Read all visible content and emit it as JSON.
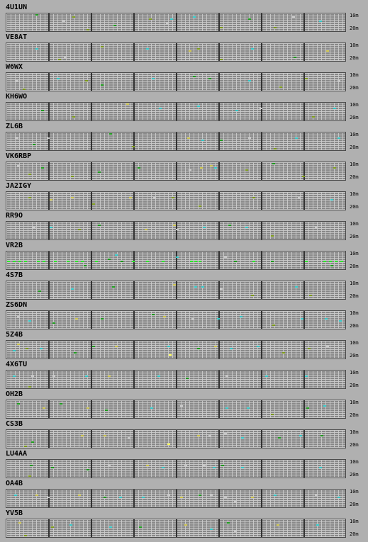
{
  "band_top_label": "10m",
  "band_bottom_label": "20m",
  "slot_colors": {
    "green": "#1c9c1c",
    "olive": "#7c9a1a",
    "yellow": "#c9c04a",
    "cyan": "#33c7c7",
    "silver": "#c8c8c8",
    "bright_green": "#2bea2b",
    "bright_yellow": "#ffff55"
  },
  "stations": [
    {
      "callsign": "4U1UN",
      "cells": [
        [
          40,
          0,
          "green"
        ],
        [
          78,
          3,
          "silver"
        ],
        [
          92,
          1,
          "olive"
        ],
        [
          200,
          2,
          "olive"
        ],
        [
          224,
          4,
          "silver"
        ],
        [
          230,
          2,
          "cyan"
        ],
        [
          262,
          1,
          "cyan"
        ],
        [
          300,
          6,
          "olive"
        ],
        [
          340,
          2,
          "green"
        ],
        [
          376,
          6,
          "olive"
        ],
        [
          402,
          1,
          "silver"
        ],
        [
          440,
          3,
          "cyan"
        ],
        [
          112,
          7,
          "olive"
        ],
        [
          150,
          5,
          "green"
        ]
      ]
    },
    {
      "callsign": "VE8AT",
      "cells": [
        [
          40,
          2,
          "cyan"
        ],
        [
          72,
          7,
          "olive"
        ],
        [
          80,
          6,
          "silver"
        ],
        [
          132,
          1,
          "olive"
        ],
        [
          196,
          2,
          "cyan"
        ],
        [
          256,
          3,
          "yellow"
        ],
        [
          268,
          2,
          "olive"
        ],
        [
          300,
          7,
          "olive"
        ],
        [
          344,
          2,
          "cyan"
        ],
        [
          404,
          6,
          "green"
        ],
        [
          450,
          3,
          "yellow"
        ]
      ]
    },
    {
      "callsign": "W6WX",
      "cells": [
        [
          12,
          3,
          "silver"
        ],
        [
          70,
          2,
          "cyan"
        ],
        [
          110,
          3,
          "olive"
        ],
        [
          132,
          5,
          "green"
        ],
        [
          204,
          2,
          "cyan"
        ],
        [
          262,
          1,
          "green"
        ],
        [
          284,
          2,
          "green"
        ],
        [
          340,
          3,
          "cyan"
        ],
        [
          384,
          6,
          "olive"
        ],
        [
          420,
          2,
          "olive"
        ],
        [
          466,
          3,
          "silver"
        ],
        [
          22,
          7,
          "olive"
        ]
      ]
    },
    {
      "callsign": "KH6WO",
      "cells": [
        [
          48,
          3,
          "green"
        ],
        [
          92,
          6,
          "olive"
        ],
        [
          168,
          0,
          "yellow"
        ],
        [
          214,
          2,
          "cyan"
        ],
        [
          268,
          1,
          "cyan"
        ],
        [
          322,
          3,
          "cyan"
        ],
        [
          356,
          2,
          "silver"
        ],
        [
          430,
          6,
          "olive"
        ],
        [
          460,
          2,
          "cyan"
        ]
      ]
    },
    {
      "callsign": "ZL6B",
      "cells": [
        [
          12,
          2,
          "silver"
        ],
        [
          36,
          5,
          "green"
        ],
        [
          56,
          2,
          "silver"
        ],
        [
          144,
          0,
          "green"
        ],
        [
          176,
          6,
          "olive"
        ],
        [
          254,
          2,
          "yellow"
        ],
        [
          274,
          3,
          "cyan"
        ],
        [
          300,
          3,
          "green"
        ],
        [
          340,
          2,
          "silver"
        ],
        [
          376,
          7,
          "olive"
        ],
        [
          406,
          2,
          "cyan"
        ],
        [
          466,
          2,
          "cyan"
        ]
      ]
    },
    {
      "callsign": "VK6RBP",
      "cells": [
        [
          14,
          1,
          "silver"
        ],
        [
          30,
          5,
          "olive"
        ],
        [
          48,
          2,
          "green"
        ],
        [
          90,
          6,
          "olive"
        ],
        [
          128,
          4,
          "green"
        ],
        [
          184,
          2,
          "green"
        ],
        [
          256,
          3,
          "silver"
        ],
        [
          272,
          2,
          "yellow"
        ],
        [
          286,
          1,
          "yellow"
        ],
        [
          292,
          2,
          "cyan"
        ],
        [
          336,
          3,
          "olive"
        ],
        [
          374,
          0,
          "green"
        ],
        [
          416,
          6,
          "olive"
        ],
        [
          460,
          2,
          "olive"
        ]
      ]
    },
    {
      "callsign": "JA2IGY",
      "cells": [
        [
          30,
          2,
          "olive"
        ],
        [
          60,
          3,
          "yellow"
        ],
        [
          90,
          2,
          "yellow"
        ],
        [
          120,
          5,
          "olive"
        ],
        [
          172,
          2,
          "yellow"
        ],
        [
          206,
          2,
          "silver"
        ],
        [
          232,
          2,
          "olive"
        ],
        [
          270,
          6,
          "olive"
        ],
        [
          346,
          2,
          "olive"
        ],
        [
          410,
          2,
          "silver"
        ],
        [
          456,
          3,
          "cyan"
        ]
      ]
    },
    {
      "callsign": "RR9O",
      "cells": [
        [
          36,
          2,
          "silver"
        ],
        [
          60,
          2,
          "cyan"
        ],
        [
          100,
          3,
          "olive"
        ],
        [
          128,
          1,
          "green"
        ],
        [
          194,
          3,
          "yellow"
        ],
        [
          234,
          1,
          "yellow"
        ],
        [
          238,
          3,
          "silver"
        ],
        [
          276,
          2,
          "cyan"
        ],
        [
          312,
          1,
          "green"
        ],
        [
          336,
          2,
          "cyan"
        ],
        [
          372,
          6,
          "olive"
        ],
        [
          434,
          2,
          "silver"
        ]
      ]
    },
    {
      "callsign": "VR2B",
      "cells": [
        [
          0,
          4,
          "bright_green"
        ],
        [
          8,
          4,
          "bright_green"
        ],
        [
          16,
          4,
          "bright_green"
        ],
        [
          24,
          4,
          "bright_green"
        ],
        [
          42,
          4,
          "bright_green"
        ],
        [
          50,
          4,
          "bright_green"
        ],
        [
          66,
          4,
          "bright_green"
        ],
        [
          84,
          4,
          "bright_green"
        ],
        [
          96,
          4,
          "bright_green"
        ],
        [
          104,
          4,
          "bright_green"
        ],
        [
          124,
          4,
          "bright_green"
        ],
        [
          142,
          3,
          "green"
        ],
        [
          152,
          1,
          "cyan"
        ],
        [
          160,
          4,
          "green"
        ],
        [
          176,
          4,
          "bright_green"
        ],
        [
          196,
          4,
          "bright_green"
        ],
        [
          218,
          4,
          "bright_green"
        ],
        [
          238,
          2,
          "cyan"
        ],
        [
          258,
          4,
          "bright_green"
        ],
        [
          264,
          4,
          "bright_green"
        ],
        [
          270,
          4,
          "bright_green"
        ],
        [
          306,
          2,
          "silver"
        ],
        [
          320,
          4,
          "green"
        ],
        [
          346,
          4,
          "bright_green"
        ],
        [
          372,
          4,
          "green"
        ],
        [
          420,
          4,
          "bright_green"
        ],
        [
          446,
          4,
          "bright_green"
        ],
        [
          454,
          4,
          "bright_green"
        ],
        [
          462,
          4,
          "bright_green"
        ],
        [
          470,
          4,
          "bright_green"
        ],
        [
          108,
          6,
          "green"
        ],
        [
          456,
          6,
          "green"
        ]
      ]
    },
    {
      "callsign": "4S7B",
      "cells": [
        [
          44,
          4,
          "green"
        ],
        [
          90,
          3,
          "cyan"
        ],
        [
          148,
          2,
          "green"
        ],
        [
          234,
          1,
          "yellow"
        ],
        [
          264,
          2,
          "cyan"
        ],
        [
          274,
          2,
          "cyan"
        ],
        [
          300,
          3,
          "silver"
        ],
        [
          344,
          6,
          "olive"
        ],
        [
          406,
          2,
          "cyan"
        ],
        [
          426,
          6,
          "olive"
        ]
      ]
    },
    {
      "callsign": "ZS6DN",
      "cells": [
        [
          14,
          2,
          "silver"
        ],
        [
          30,
          4,
          "cyan"
        ],
        [
          64,
          5,
          "green"
        ],
        [
          96,
          3,
          "yellow"
        ],
        [
          132,
          3,
          "green"
        ],
        [
          204,
          1,
          "green"
        ],
        [
          220,
          2,
          "yellow"
        ],
        [
          260,
          3,
          "silver"
        ],
        [
          296,
          3,
          "cyan"
        ],
        [
          328,
          2,
          "cyan"
        ],
        [
          374,
          6,
          "olive"
        ],
        [
          414,
          3,
          "cyan"
        ],
        [
          448,
          3,
          "cyan"
        ],
        [
          468,
          4,
          "cyan"
        ]
      ]
    },
    {
      "callsign": "5Z4B",
      "cells": [
        [
          8,
          4,
          "cyan"
        ],
        [
          14,
          1,
          "yellow"
        ],
        [
          26,
          3,
          "olive"
        ],
        [
          46,
          3,
          "cyan"
        ],
        [
          94,
          5,
          "green"
        ],
        [
          120,
          2,
          "green"
        ],
        [
          152,
          2,
          "yellow"
        ],
        [
          226,
          2,
          "cyan"
        ],
        [
          228,
          6,
          "bright_yellow"
        ],
        [
          268,
          3,
          "green"
        ],
        [
          292,
          2,
          "yellow"
        ],
        [
          314,
          3,
          "cyan"
        ],
        [
          352,
          2,
          "cyan"
        ],
        [
          388,
          5,
          "olive"
        ],
        [
          424,
          3,
          "olive"
        ],
        [
          450,
          2,
          "silver"
        ]
      ]
    },
    {
      "callsign": "4X6TU",
      "cells": [
        [
          8,
          2,
          "cyan"
        ],
        [
          34,
          2,
          "silver"
        ],
        [
          64,
          2,
          "silver"
        ],
        [
          110,
          2,
          "cyan"
        ],
        [
          142,
          2,
          "yellow"
        ],
        [
          212,
          2,
          "cyan"
        ],
        [
          252,
          3,
          "green"
        ],
        [
          308,
          2,
          "silver"
        ],
        [
          364,
          2,
          "cyan"
        ],
        [
          420,
          2,
          "cyan"
        ],
        [
          30,
          7,
          "olive"
        ]
      ]
    },
    {
      "callsign": "OH2B",
      "cells": [
        [
          14,
          1,
          "green"
        ],
        [
          50,
          3,
          "yellow"
        ],
        [
          74,
          1,
          "green"
        ],
        [
          112,
          3,
          "yellow"
        ],
        [
          138,
          4,
          "green"
        ],
        [
          202,
          3,
          "cyan"
        ],
        [
          244,
          2,
          "silver"
        ],
        [
          308,
          3,
          "cyan"
        ],
        [
          338,
          3,
          "cyan"
        ],
        [
          372,
          6,
          "olive"
        ],
        [
          422,
          3,
          "green"
        ],
        [
          446,
          2,
          "cyan"
        ]
      ]
    },
    {
      "callsign": "CS3B",
      "cells": [
        [
          34,
          5,
          "green"
        ],
        [
          104,
          2,
          "yellow"
        ],
        [
          136,
          2,
          "yellow"
        ],
        [
          170,
          3,
          "silver"
        ],
        [
          226,
          6,
          "bright_yellow"
        ],
        [
          268,
          2,
          "yellow"
        ],
        [
          284,
          2,
          "silver"
        ],
        [
          306,
          1,
          "silver"
        ],
        [
          330,
          3,
          "cyan"
        ],
        [
          382,
          3,
          "green"
        ],
        [
          412,
          2,
          "cyan"
        ],
        [
          442,
          2,
          "green"
        ],
        [
          24,
          7,
          "olive"
        ]
      ]
    },
    {
      "callsign": "LU4AA",
      "cells": [
        [
          32,
          2,
          "green"
        ],
        [
          62,
          3,
          "green"
        ],
        [
          112,
          4,
          "green"
        ],
        [
          142,
          2,
          "silver"
        ],
        [
          196,
          2,
          "yellow"
        ],
        [
          218,
          3,
          "cyan"
        ],
        [
          250,
          2,
          "silver"
        ],
        [
          276,
          2,
          "silver"
        ],
        [
          290,
          3,
          "cyan"
        ],
        [
          302,
          2,
          "green"
        ],
        [
          330,
          3,
          "cyan"
        ],
        [
          440,
          3,
          "cyan"
        ],
        [
          30,
          7,
          "olive"
        ]
      ]
    },
    {
      "callsign": "OA4B",
      "cells": [
        [
          10,
          2,
          "cyan"
        ],
        [
          40,
          2,
          "yellow"
        ],
        [
          56,
          3,
          "silver"
        ],
        [
          100,
          2,
          "yellow"
        ],
        [
          136,
          3,
          "green"
        ],
        [
          158,
          3,
          "cyan"
        ],
        [
          190,
          3,
          "cyan"
        ],
        [
          226,
          2,
          "silver"
        ],
        [
          244,
          3,
          "yellow"
        ],
        [
          270,
          2,
          "green"
        ],
        [
          286,
          2,
          "silver"
        ],
        [
          306,
          3,
          "silver"
        ],
        [
          320,
          5,
          "silver"
        ],
        [
          344,
          3,
          "yellow"
        ],
        [
          376,
          2,
          "cyan"
        ],
        [
          434,
          2,
          "silver"
        ],
        [
          466,
          3,
          "cyan"
        ]
      ]
    },
    {
      "callsign": "YV5B",
      "cells": [
        [
          16,
          1,
          "yellow"
        ],
        [
          62,
          3,
          "olive"
        ],
        [
          88,
          2,
          "cyan"
        ],
        [
          144,
          3,
          "cyan"
        ],
        [
          186,
          3,
          "green"
        ],
        [
          250,
          2,
          "yellow"
        ],
        [
          286,
          4,
          "cyan"
        ],
        [
          310,
          1,
          "green"
        ],
        [
          320,
          5,
          "silver"
        ],
        [
          380,
          2,
          "yellow"
        ],
        [
          436,
          2,
          "cyan"
        ],
        [
          24,
          7,
          "olive"
        ]
      ]
    }
  ]
}
